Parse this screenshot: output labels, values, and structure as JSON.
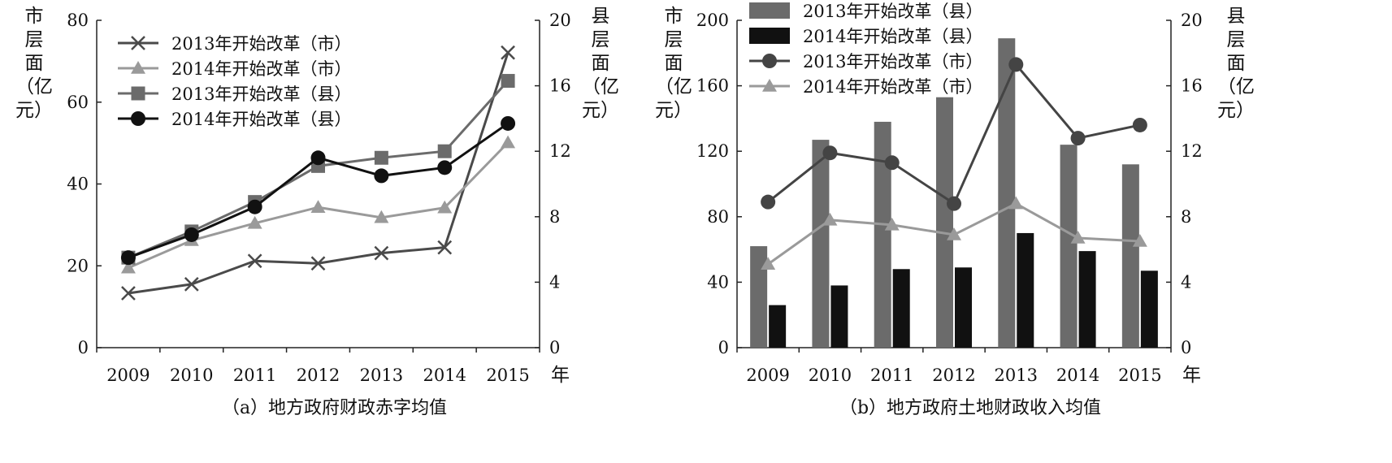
{
  "chart_data": [
    {
      "id": "a",
      "type": "line",
      "title": "（a）地方政府财政赤字均值",
      "x": [
        "2009",
        "2010",
        "2011",
        "2012",
        "2013",
        "2014",
        "2015"
      ],
      "xlabel": "年",
      "ylabel_left": [
        "市",
        "层",
        "面",
        "（亿",
        "元）"
      ],
      "ylabel_right": [
        "县",
        "层",
        "面",
        "（亿",
        "元）"
      ],
      "ylim_left": [
        0,
        80
      ],
      "yticks_left": [
        0,
        20,
        40,
        60,
        80
      ],
      "ylim_right": [
        0,
        20
      ],
      "yticks_right": [
        0,
        4,
        8,
        12,
        16,
        20
      ],
      "series": [
        {
          "name": "2013年开始改革（市）",
          "axis": "left",
          "marker": "x",
          "color": "#4a4a4a",
          "values": [
            13.3,
            15.5,
            21.2,
            20.6,
            23.1,
            24.5,
            72.1
          ]
        },
        {
          "name": "2014年开始改革（市）",
          "axis": "left",
          "marker": "triangle",
          "color": "#9a9a9a",
          "values": [
            19.5,
            26.2,
            30.4,
            34.3,
            31.8,
            34.2,
            50.1
          ]
        },
        {
          "name": "2013年开始改革（县）",
          "axis": "right",
          "marker": "square",
          "color": "#6b6b6b",
          "values": [
            5.5,
            7.1,
            8.9,
            11.1,
            11.6,
            12.0,
            16.3
          ]
        },
        {
          "name": "2014年开始改革（县）",
          "axis": "right",
          "marker": "circle",
          "color": "#111111",
          "values": [
            5.5,
            6.9,
            8.6,
            11.6,
            10.5,
            11.0,
            13.7
          ]
        }
      ]
    },
    {
      "id": "b",
      "type": "bar",
      "title": "（b）地方政府土地财政收入均值",
      "x": [
        "2009",
        "2010",
        "2011",
        "2012",
        "2013",
        "2014",
        "2015"
      ],
      "xlabel": "年",
      "ylabel_left": [
        "市",
        "层",
        "面",
        "（亿",
        "元）"
      ],
      "ylabel_right": [
        "县",
        "层",
        "面",
        "（亿",
        "元）"
      ],
      "ylim_left": [
        0,
        200
      ],
      "yticks_left": [
        0,
        40,
        80,
        120,
        160,
        200
      ],
      "ylim_right": [
        0,
        20
      ],
      "yticks_right": [
        0,
        4,
        8,
        12,
        16,
        20
      ],
      "bar_series": [
        {
          "name": "2013年开始改革（县）",
          "axis": "right",
          "color": "#6b6b6b",
          "values": [
            6.2,
            12.7,
            13.8,
            15.3,
            18.9,
            12.4,
            11.2
          ]
        },
        {
          "name": "2014年开始改革（县）",
          "axis": "right",
          "color": "#111111",
          "values": [
            2.6,
            3.8,
            4.8,
            4.9,
            7.0,
            5.9,
            4.7
          ]
        }
      ],
      "line_series": [
        {
          "name": "2013年开始改革（市）",
          "axis": "left",
          "marker": "circle",
          "color": "#444444",
          "values": [
            89,
            119,
            113,
            88,
            173,
            128,
            136
          ]
        },
        {
          "name": "2014年开始改革（市）",
          "axis": "left",
          "marker": "triangle",
          "color": "#9a9a9a",
          "values": [
            51,
            78,
            75,
            69,
            88,
            67,
            65
          ]
        }
      ]
    }
  ]
}
